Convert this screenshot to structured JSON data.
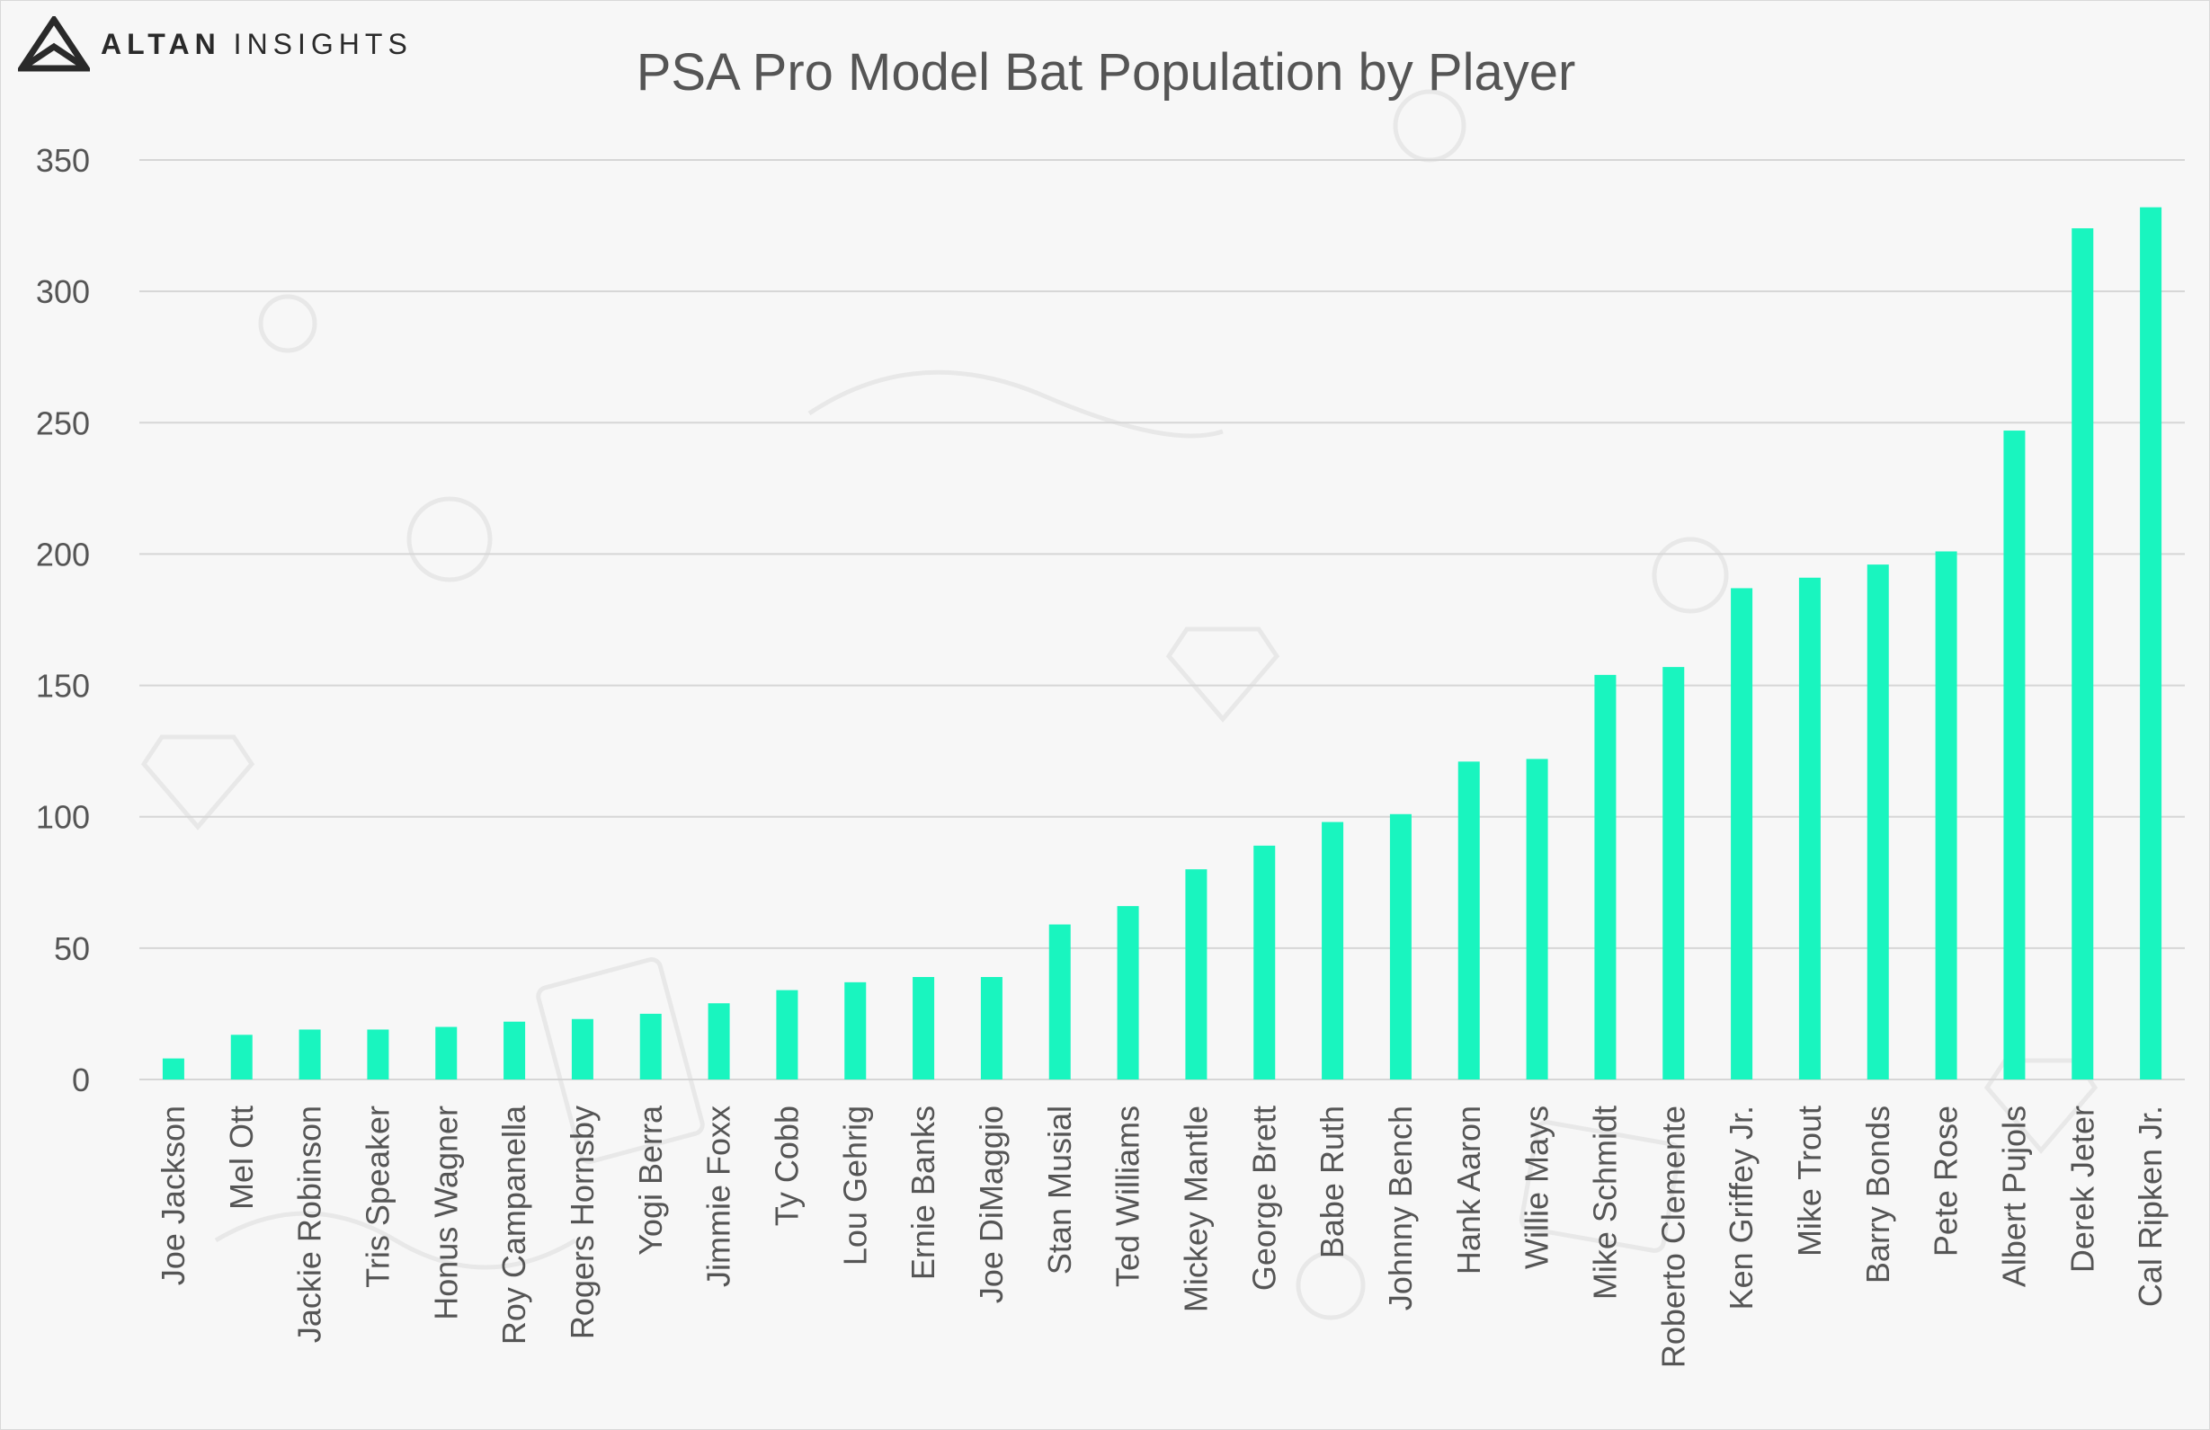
{
  "brand": {
    "name_bold": "ALTAN",
    "name_light": "INSIGHTS"
  },
  "colors": {
    "bar": "#19f5bf",
    "grid": "#d6d6d6",
    "text": "#555555"
  },
  "chart_data": {
    "type": "bar",
    "title": "PSA Pro Model Bat Population by Player",
    "xlabel": "",
    "ylabel": "",
    "ylim": [
      0,
      350
    ],
    "yticks": [
      0,
      50,
      100,
      150,
      200,
      250,
      300,
      350
    ],
    "grid": true,
    "categories": [
      "Joe Jackson",
      "Mel Ott",
      "Jackie Robinson",
      "Tris Speaker",
      "Honus Wagner",
      "Roy Campanella",
      "Rogers Hornsby",
      "Yogi Berra",
      "Jimmie Foxx",
      "Ty Cobb",
      "Lou Gehrig",
      "Ernie Banks",
      "Joe DiMaggio",
      "Stan Musial",
      "Ted Williams",
      "Mickey Mantle",
      "George Brett",
      "Babe Ruth",
      "Johnny Bench",
      "Hank Aaron",
      "Willie Mays",
      "Mike Schmidt",
      "Roberto Clemente",
      "Ken Griffey Jr.",
      "Mike Trout",
      "Barry Bonds",
      "Pete Rose",
      "Albert Pujols",
      "Derek Jeter",
      "Cal Ripken Jr."
    ],
    "values": [
      8,
      17,
      19,
      19,
      20,
      22,
      23,
      25,
      29,
      34,
      37,
      39,
      39,
      59,
      66,
      80,
      89,
      98,
      101,
      121,
      122,
      154,
      157,
      187,
      191,
      196,
      201,
      247,
      324,
      332
    ]
  }
}
